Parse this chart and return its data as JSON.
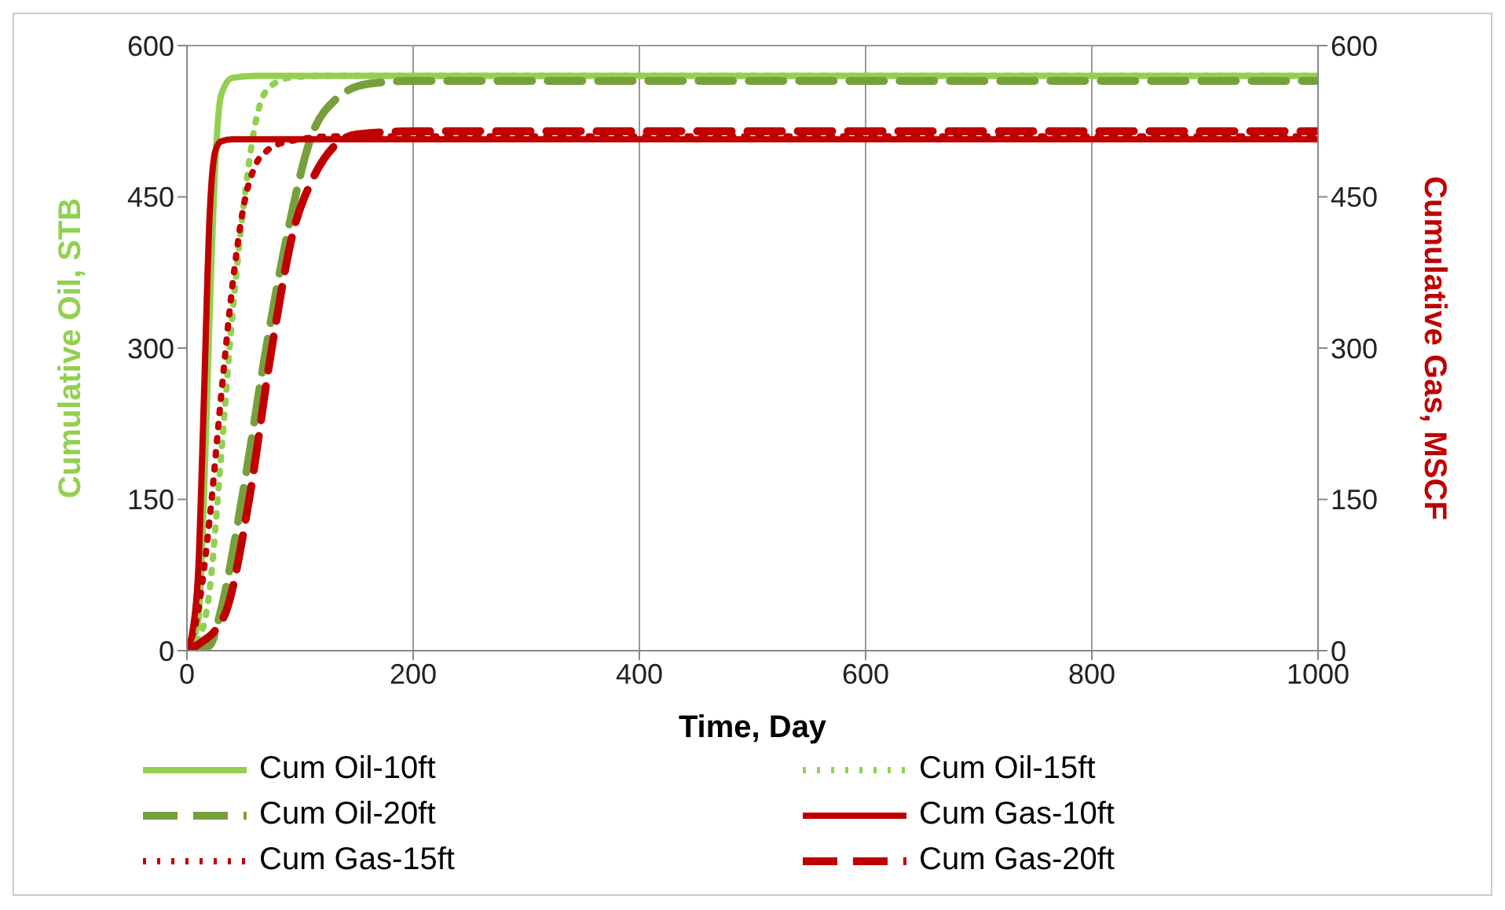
{
  "chart_data": {
    "type": "line",
    "xlabel": "Time, Day",
    "ylabel": "Cumulative Oil, STB",
    "y2label": "Cumulative Gas, MSCF",
    "xlim": [
      0,
      1000
    ],
    "xticks": [
      0,
      200,
      400,
      600,
      800,
      1000
    ],
    "ylim": [
      0,
      600
    ],
    "yticks": [
      0,
      150,
      300,
      450,
      600
    ],
    "y2lim": [
      0,
      600
    ],
    "y2ticks": [
      0,
      150,
      300,
      450,
      600
    ],
    "grid": true,
    "legend": "bottom",
    "marker": "none",
    "series": [
      {
        "name": "Cum Oil-10ft",
        "color": "#92d050",
        "line_style": "solid",
        "x": [
          0,
          10,
          15,
          20,
          25,
          30,
          40,
          60,
          100,
          200,
          400,
          600,
          800,
          1000
        ],
        "values": [
          0,
          30,
          150,
          330,
          480,
          550,
          568,
          570,
          570,
          570,
          570,
          570,
          570,
          570
        ]
      },
      {
        "name": "Cum Oil-15ft",
        "color": "#92d050",
        "line_style": "dotted",
        "x": [
          0,
          10,
          20,
          30,
          40,
          50,
          60,
          70,
          90,
          120,
          200,
          400,
          600,
          800,
          1000
        ],
        "values": [
          0,
          10,
          60,
          190,
          330,
          440,
          520,
          555,
          568,
          570,
          570,
          570,
          570,
          570,
          570
        ]
      },
      {
        "name": "Cum Oil-20ft",
        "color": "#77a03c",
        "line_style": "dashed",
        "x": [
          0,
          20,
          30,
          50,
          70,
          90,
          110,
          130,
          160,
          200,
          400,
          600,
          800,
          1000
        ],
        "values": [
          0,
          5,
          40,
          160,
          300,
          420,
          510,
          545,
          562,
          565,
          565,
          565,
          565,
          565
        ]
      },
      {
        "name": "Cum Gas-10ft",
        "color": "#c00000",
        "line_style": "solid",
        "x": [
          0,
          5,
          10,
          15,
          20,
          25,
          30,
          40,
          60,
          100,
          200,
          400,
          600,
          800,
          1000
        ],
        "values": [
          0,
          20,
          80,
          250,
          430,
          495,
          505,
          507,
          507,
          507,
          507,
          507,
          507,
          507,
          507
        ],
        "axis": "y2"
      },
      {
        "name": "Cum Gas-15ft",
        "color": "#c00000",
        "line_style": "dotted",
        "x": [
          0,
          10,
          20,
          30,
          40,
          50,
          60,
          70,
          90,
          130,
          200,
          400,
          600,
          800,
          1000
        ],
        "values": [
          0,
          40,
          130,
          250,
          360,
          440,
          480,
          495,
          505,
          510,
          510,
          510,
          510,
          510,
          510
        ],
        "axis": "y2"
      },
      {
        "name": "Cum Gas-20ft",
        "color": "#c00000",
        "line_style": "dashed",
        "x": [
          0,
          15,
          25,
          35,
          55,
          75,
          95,
          110,
          130,
          150,
          200,
          400,
          600,
          800,
          1000
        ],
        "values": [
          0,
          10,
          20,
          40,
          150,
          300,
          420,
          465,
          500,
          512,
          515,
          515,
          515,
          515,
          515
        ],
        "axis": "y2"
      }
    ]
  }
}
